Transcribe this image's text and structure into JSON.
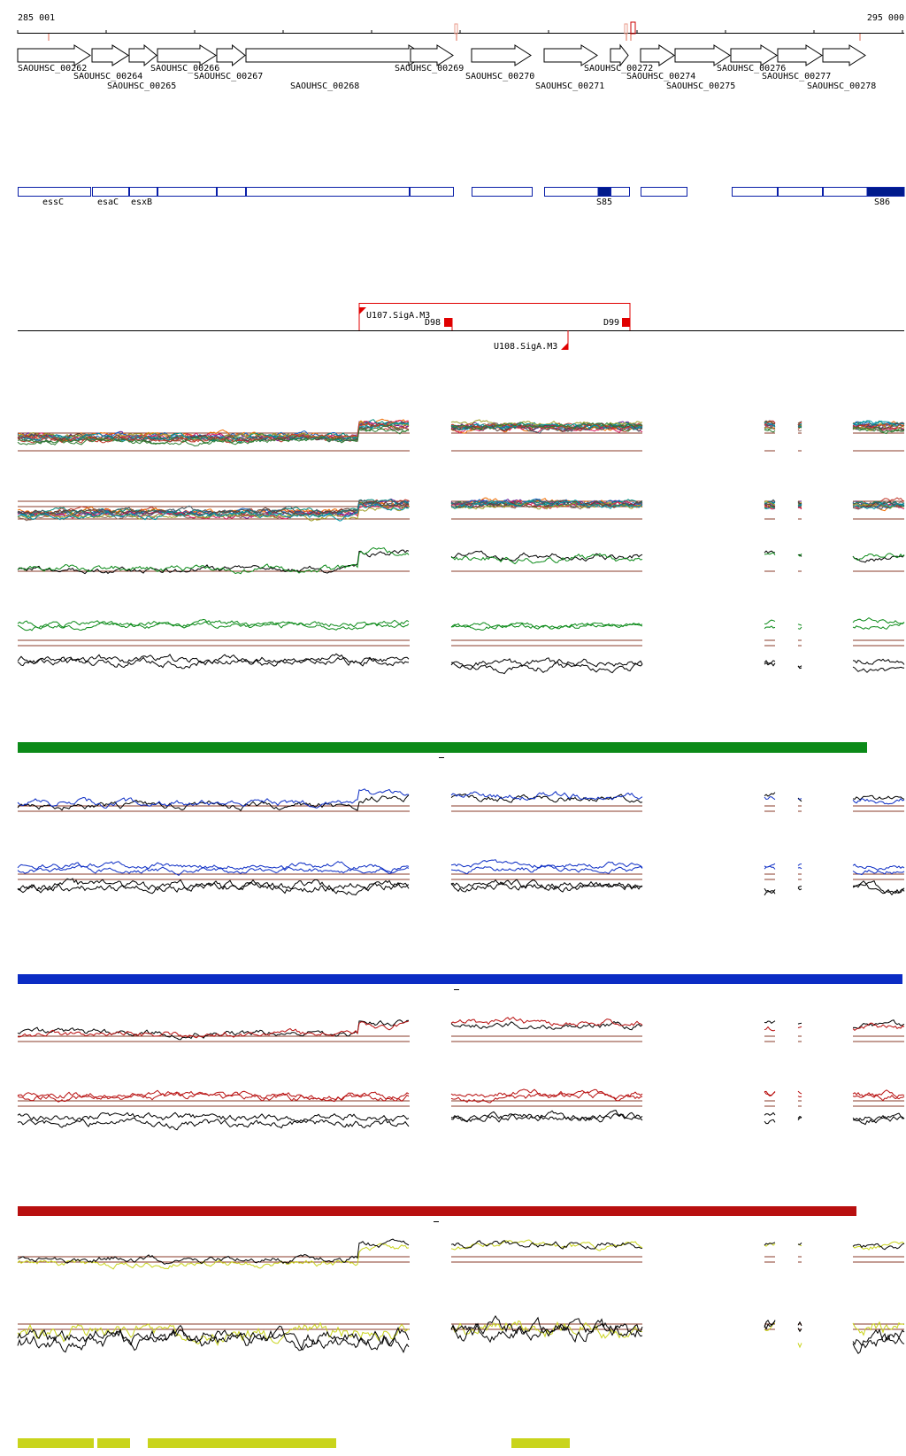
{
  "coords": {
    "start": "285 001",
    "end": "295 000"
  },
  "colors": {
    "gene_outline": "#000000",
    "operon": "#0a1fa8",
    "operon_fill_dark": "#001a8c",
    "transcript": "#e00000",
    "green": "#0b8a18",
    "blue": "#0b2cc4",
    "red": "#b80f0f",
    "yellow": "#c9d41c",
    "ref_line": "#8a3b2a",
    "black": "#000000",
    "tick_pink": "#e89a8a"
  },
  "genes": [
    {
      "label": "SAOUHSC_00262"
    },
    {
      "label": "SAOUHSC_00264"
    },
    {
      "label": "SAOUHSC_00265"
    },
    {
      "label": "SAOUHSC_00266"
    },
    {
      "label": "SAOUHSC_00267"
    },
    {
      "label": "SAOUHSC_00268"
    },
    {
      "label": "SAOUHSC_00269"
    },
    {
      "label": "SAOUHSC_00270"
    },
    {
      "label": "SAOUHSC_00271"
    },
    {
      "label": "SAOUHSC_00272"
    },
    {
      "label": "SAOUHSC_00274"
    },
    {
      "label": "SAOUHSC_00275"
    },
    {
      "label": "SAOUHSC_00276"
    },
    {
      "label": "SAOUHSC_00277"
    },
    {
      "label": "SAOUHSC_00278"
    }
  ],
  "operon_labels": [
    {
      "label": "essC"
    },
    {
      "label": "esaC"
    },
    {
      "label": "esxB"
    },
    {
      "label": "S85"
    },
    {
      "label": "S86"
    }
  ],
  "promoters": [
    {
      "label": "U107.SigA.M3"
    },
    {
      "label": "U108.SigA.M3"
    }
  ],
  "terminators": [
    {
      "label": "D98"
    },
    {
      "label": "D99"
    }
  ]
}
